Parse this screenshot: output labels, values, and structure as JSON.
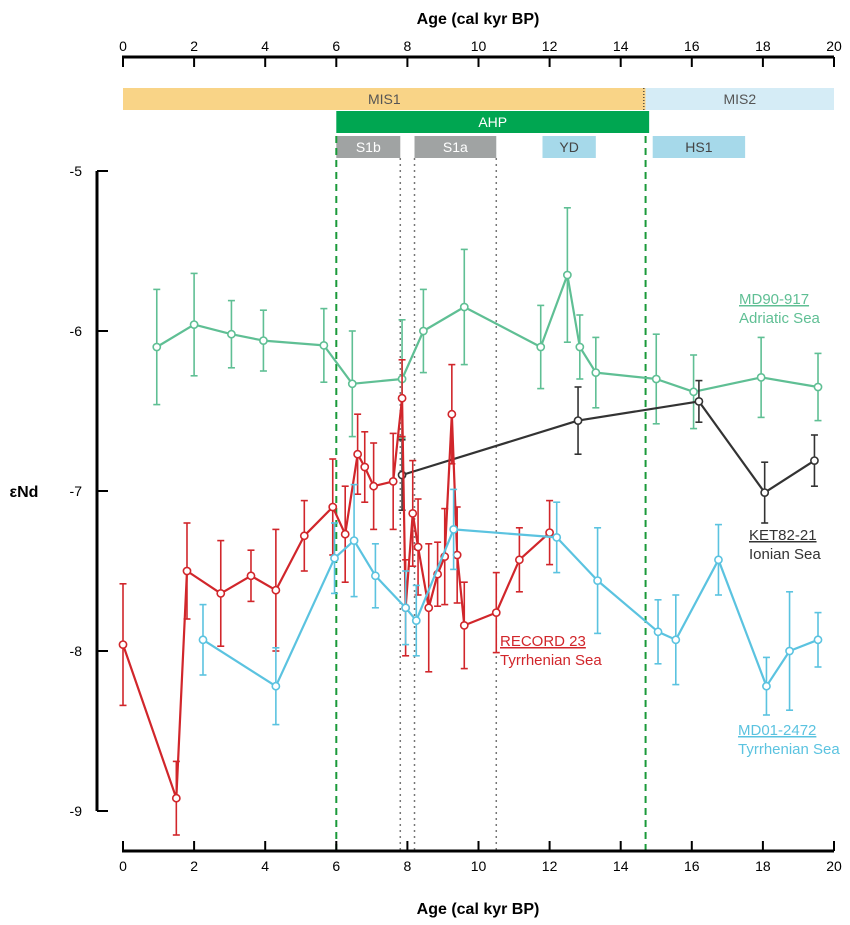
{
  "chart_data": {
    "type": "line",
    "xlabel": "Age (cal kyr BP)",
    "ylabel": "εNd",
    "xlim": [
      0,
      20
    ],
    "ylim": [
      -9,
      -5
    ],
    "x_ticks": [
      0,
      2,
      4,
      6,
      8,
      10,
      12,
      14,
      16,
      18,
      20
    ],
    "y_ticks": [
      -5,
      -6,
      -7,
      -8,
      -9
    ],
    "y_tick_labels": [
      "-5",
      "-6",
      "-7",
      "-8",
      "-9"
    ],
    "x_axes": [
      "top",
      "bottom"
    ],
    "grid": false,
    "bands": [
      {
        "label": "MIS1",
        "start": 0,
        "end": 14.7,
        "row": 0,
        "color": "#f9d487",
        "text_color": "#555555"
      },
      {
        "label": "MIS2",
        "start": 14.7,
        "end": 20,
        "row": 0,
        "color": "#d5ecf6",
        "text_color": "#555555"
      },
      {
        "label": "AHP",
        "start": 6,
        "end": 14.8,
        "row": 1,
        "color": "#00a651",
        "text_color": "#ffffff"
      },
      {
        "label": "S1b",
        "start": 6.0,
        "end": 7.8,
        "row": 2,
        "color": "#a0a3a3",
        "text_color": "#ffffff"
      },
      {
        "label": "S1a",
        "start": 8.2,
        "end": 10.5,
        "row": 2,
        "color": "#a0a3a3",
        "text_color": "#ffffff"
      },
      {
        "label": "YD",
        "start": 11.8,
        "end": 13.3,
        "row": 2,
        "color": "#a6d9ea",
        "text_color": "#444444"
      },
      {
        "label": "HS1",
        "start": 14.9,
        "end": 17.5,
        "row": 2,
        "color": "#a6d9ea",
        "text_color": "#444444"
      }
    ],
    "vlines": [
      {
        "x": 6.0,
        "style": "green-dashed"
      },
      {
        "x": 14.7,
        "style": "green-dashed"
      },
      {
        "x": 7.8,
        "style": "gray-dotted"
      },
      {
        "x": 8.2,
        "style": "gray-dotted"
      },
      {
        "x": 10.5,
        "style": "gray-dotted"
      },
      {
        "x": 14.65,
        "style": "black-dotted-band"
      }
    ],
    "series": [
      {
        "name": "MD90-917",
        "location": "Adriatic Sea",
        "color": "#5fbf94",
        "x": [
          0.95,
          2.0,
          3.05,
          3.95,
          5.65,
          6.45,
          7.85,
          8.45,
          9.6,
          11.75,
          12.5,
          12.85,
          13.3,
          15.0,
          16.05,
          17.95,
          19.55
        ],
        "y": [
          -6.1,
          -5.96,
          -6.02,
          -6.06,
          -6.09,
          -6.33,
          -6.3,
          -6.0,
          -5.85,
          -6.1,
          -5.65,
          -6.1,
          -6.26,
          -6.3,
          -6.38,
          -6.29,
          -6.35
        ],
        "err": [
          0.36,
          0.32,
          0.21,
          0.19,
          0.23,
          0.33,
          0.37,
          0.26,
          0.36,
          0.26,
          0.42,
          0.2,
          0.22,
          0.28,
          0.23,
          0.25,
          0.21
        ]
      },
      {
        "name": "KET82-21",
        "location": "Ionian Sea",
        "color": "#333333",
        "x": [
          7.85,
          12.8,
          16.2,
          18.05,
          19.45
        ],
        "y": [
          -6.9,
          -6.56,
          -6.44,
          -7.01,
          -6.81
        ],
        "err": [
          0.22,
          0.21,
          0.13,
          0.19,
          0.16
        ]
      },
      {
        "name": "RECORD 23",
        "location": "Tyrrhenian Sea",
        "color": "#d1262b",
        "x": [
          0.0,
          1.5,
          1.8,
          2.75,
          3.6,
          4.3,
          5.1,
          5.9,
          6.25,
          6.6,
          6.8,
          7.05,
          7.6,
          7.85,
          7.95,
          8.15,
          8.3,
          8.6,
          8.85,
          9.05,
          9.25,
          9.4,
          9.6,
          10.5,
          11.15,
          12.0
        ],
        "y": [
          -7.96,
          -8.92,
          -7.5,
          -7.64,
          -7.53,
          -7.62,
          -7.28,
          -7.1,
          -7.27,
          -6.77,
          -6.85,
          -6.97,
          -6.94,
          -6.42,
          -7.73,
          -7.14,
          -7.35,
          -7.73,
          -7.52,
          -7.41,
          -6.52,
          -7.4,
          -7.84,
          -7.76,
          -7.43,
          -7.26
        ],
        "err": [
          0.38,
          0.23,
          0.3,
          0.33,
          0.16,
          0.38,
          0.22,
          0.3,
          0.3,
          0.25,
          0.22,
          0.27,
          0.3,
          0.24,
          0.3,
          0.33,
          0.3,
          0.4,
          0.2,
          0.3,
          0.31,
          0.3,
          0.27,
          0.25,
          0.2,
          0.2
        ]
      },
      {
        "name": "MD01-2472",
        "location": "Tyrrhenian Sea",
        "color": "#5bc3e0",
        "x": [
          2.25,
          4.3,
          5.95,
          6.5,
          7.1,
          7.95,
          8.25,
          9.3,
          12.2,
          13.35,
          15.05,
          15.55,
          16.75,
          18.1,
          18.75,
          19.55
        ],
        "y": [
          -7.93,
          -8.22,
          -7.42,
          -7.31,
          -7.53,
          -7.73,
          -7.81,
          -7.24,
          -7.29,
          -7.56,
          -7.88,
          -7.93,
          -7.43,
          -8.22,
          -8.0,
          -7.93
        ],
        "err": [
          0.22,
          0.24,
          0.22,
          0.35,
          0.2,
          0.23,
          0.22,
          0.25,
          0.22,
          0.33,
          0.2,
          0.28,
          0.22,
          0.18,
          0.37,
          0.17
        ]
      }
    ]
  }
}
